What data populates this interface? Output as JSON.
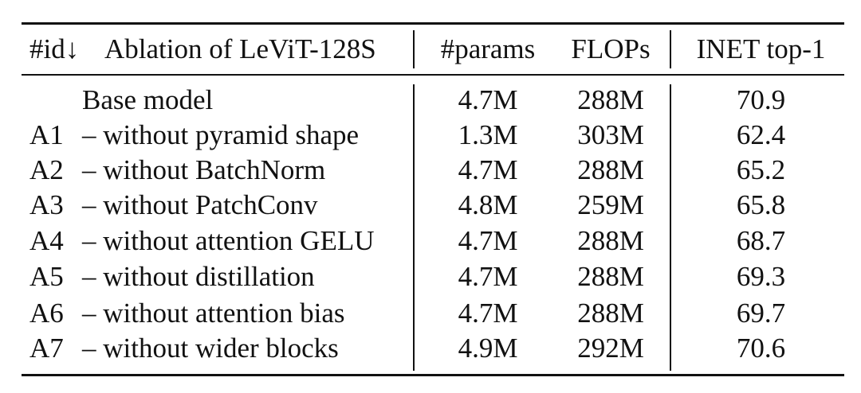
{
  "table": {
    "headers": {
      "id": "#id↓",
      "ablation": "Ablation of LeViT-128S",
      "params": "#params",
      "flops": "FLOPs",
      "top1": "INET top-1"
    },
    "rows": [
      {
        "id": "",
        "ablation": "Base model",
        "params": "4.7M",
        "flops": "288M",
        "top1": "70.9"
      },
      {
        "id": "A1",
        "ablation": "– without pyramid shape",
        "params": "1.3M",
        "flops": "303M",
        "top1": "62.4"
      },
      {
        "id": "A2",
        "ablation": "– without BatchNorm",
        "params": "4.7M",
        "flops": "288M",
        "top1": "65.2"
      },
      {
        "id": "A3",
        "ablation": "– without PatchConv",
        "params": "4.8M",
        "flops": "259M",
        "top1": "65.8"
      },
      {
        "id": "A4",
        "ablation": "– without attention GELU",
        "params": "4.7M",
        "flops": "288M",
        "top1": "68.7"
      },
      {
        "id": "A5",
        "ablation": "– without distillation",
        "params": "4.7M",
        "flops": "288M",
        "top1": "69.3"
      },
      {
        "id": "A6",
        "ablation": "– without attention bias",
        "params": "4.7M",
        "flops": "288M",
        "top1": "69.7"
      },
      {
        "id": "A7",
        "ablation": "– without wider blocks",
        "params": "4.9M",
        "flops": "292M",
        "top1": "70.6"
      }
    ]
  }
}
